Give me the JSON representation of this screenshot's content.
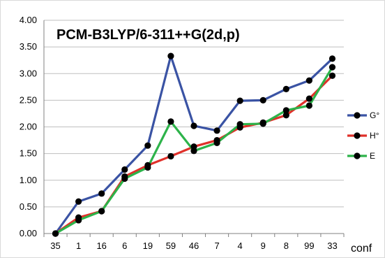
{
  "chart_data": {
    "type": "line",
    "title": "PCM-B3LYP/6-311++G(2d,p)",
    "xlabel": "conf",
    "ylabel": "",
    "categories": [
      "35",
      "1",
      "16",
      "6",
      "19",
      "59",
      "46",
      "7",
      "4",
      "9",
      "8",
      "99",
      "33"
    ],
    "y_ticks": [
      "0.00",
      "0.50",
      "1.00",
      "1.50",
      "2.00",
      "2.50",
      "3.00",
      "3.50",
      "4.00"
    ],
    "ylim": [
      0,
      4
    ],
    "grid": "horizontal",
    "legend_position": "right",
    "series": [
      {
        "name": "G°",
        "color": "#3A53A4",
        "values": [
          0.0,
          0.6,
          0.75,
          1.2,
          1.65,
          3.33,
          2.02,
          1.93,
          2.49,
          2.5,
          2.71,
          2.87,
          3.28
        ]
      },
      {
        "name": "H°",
        "color": "#E0302A",
        "values": [
          0.0,
          0.3,
          0.42,
          1.07,
          1.28,
          1.45,
          1.63,
          1.75,
          1.99,
          2.08,
          2.22,
          2.53,
          2.96
        ]
      },
      {
        "name": "E",
        "color": "#2DB34A",
        "values": [
          0.0,
          0.25,
          0.42,
          1.03,
          1.24,
          2.1,
          1.55,
          1.7,
          2.05,
          2.06,
          2.31,
          2.4,
          3.12
        ]
      }
    ],
    "marker_color": "#000000"
  }
}
